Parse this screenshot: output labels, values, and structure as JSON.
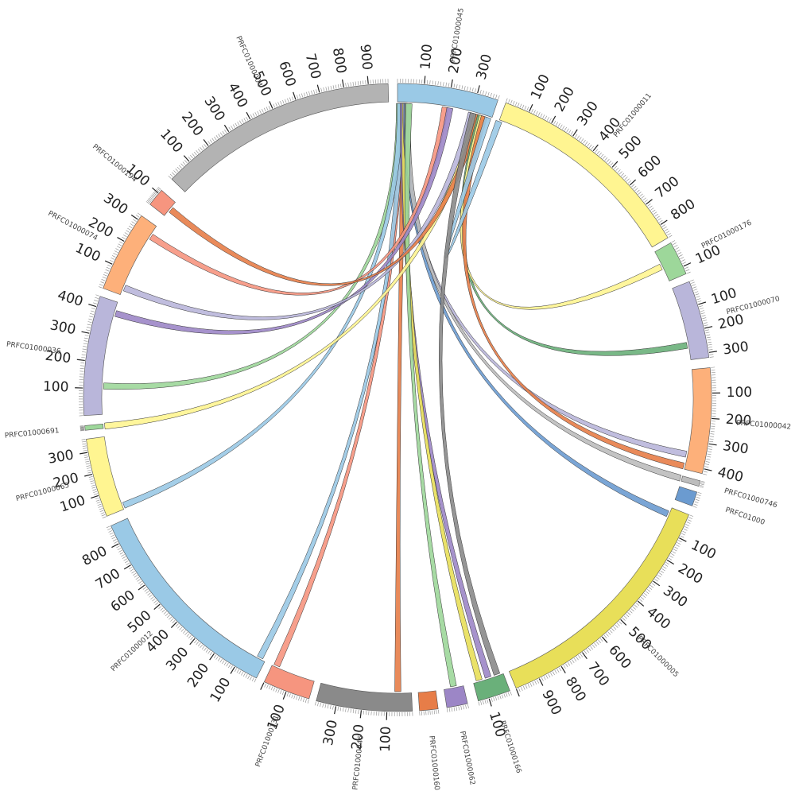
{
  "chart_data": {
    "type": "circos",
    "segments": [
      {
        "id": "PRFC01000045",
        "length": 380,
        "color": "#9ac9e6",
        "ticks": [
          "100",
          "200",
          "300"
        ]
      },
      {
        "id": "PRFC01000011",
        "length": 860,
        "color": "#fff591",
        "ticks": [
          "100",
          "200",
          "300",
          "400",
          "500",
          "600",
          "700",
          "800"
        ]
      },
      {
        "id": "PRFC01000176",
        "length": 130,
        "color": "#9dd79a",
        "ticks": [
          "100"
        ]
      },
      {
        "id": "PRFC01000070",
        "length": 320,
        "color": "#b9b6da",
        "ticks": [
          "100",
          "200",
          "300"
        ]
      },
      {
        "id": "PRFC01000042",
        "length": 420,
        "color": "#fdb07a",
        "ticks": [
          "100",
          "200",
          "300",
          "400"
        ]
      },
      {
        "id": "PRFC01000746",
        "length": 40,
        "color": "#bdbdbd",
        "ticks": []
      },
      {
        "id": "PRFC01000",
        "length": 60,
        "color": "#6b9bd0",
        "ticks": []
      },
      {
        "id": "PRFC01000005",
        "length": 1000,
        "color": "#e8df59",
        "ticks": [
          "100",
          "200",
          "300",
          "400",
          "500",
          "600",
          "700",
          "800",
          "900"
        ]
      },
      {
        "id": "PRFC01000166",
        "length": 150,
        "color": "#6ab07a",
        "ticks": [
          "100"
        ]
      },
      {
        "id": "PRFC01000062",
        "length": 90,
        "color": "#9c86c6",
        "ticks": []
      },
      {
        "id": "PRFC01000160",
        "length": 90,
        "color": "#e77d48",
        "ticks": []
      },
      {
        "id": "PRFC01000046",
        "length": 380,
        "color": "#8a8a8a",
        "ticks": [
          "100",
          "200",
          "300"
        ]
      },
      {
        "id": "PRFC01000131",
        "length": 200,
        "color": "#f6957f",
        "ticks": [
          "100"
        ]
      },
      {
        "id": "PRFC01000012",
        "length": 880,
        "color": "#9ac9e6",
        "ticks": [
          "100",
          "200",
          "300",
          "400",
          "500",
          "600",
          "700",
          "800"
        ]
      },
      {
        "id": "PRFC01000065",
        "length": 360,
        "color": "#fff591",
        "ticks": [
          "100",
          "200",
          "300"
        ]
      },
      {
        "id": "PRFC01000691",
        "length": 80,
        "color": "#9dd79a",
        "ticks": []
      },
      {
        "id": "PRFC01000036",
        "length": 440,
        "color": "#b9b6da",
        "ticks": [
          "100",
          "200",
          "300",
          "400"
        ]
      },
      {
        "id": "PRFC01000074",
        "length": 320,
        "color": "#fdb07a",
        "ticks": [
          "100",
          "200",
          "300"
        ]
      },
      {
        "id": "PRFC01000194",
        "length": 130,
        "color": "#f6957f",
        "ticks": [
          "100"
        ]
      },
      {
        "id": "PRFC01000004",
        "length": 980,
        "color": "#b3b3b3",
        "ticks": [
          "100",
          "200",
          "300",
          "400",
          "500",
          "600",
          "700",
          "800",
          "900"
        ]
      }
    ],
    "links": [
      {
        "source": "PRFC01000045",
        "source_pos": 0.05,
        "target": "PRFC01000131",
        "target_pos": 0.9,
        "color": "#f6957f"
      },
      {
        "source": "PRFC01000045",
        "source_pos": 0.07,
        "target": "PRFC01000046",
        "target_pos": 0.15,
        "color": "#e77d48"
      },
      {
        "source": "PRFC01000045",
        "source_pos": 0.04,
        "target": "PRFC01000012",
        "target_pos": 0.03,
        "color": "#9ac9e6"
      },
      {
        "source": "PRFC01000045",
        "source_pos": 0.02,
        "target": "PRFC01000036",
        "target_pos": 0.25,
        "color": "#9dd79a"
      },
      {
        "source": "PRFC01000045",
        "source_pos": 0.03,
        "target": "PRFC01000065",
        "target_pos": 0.05,
        "color": "#9ac9e6"
      },
      {
        "source": "PRFC01000045",
        "source_pos": 0.06,
        "target": "PRFC01000166",
        "target_pos": 0.5,
        "color": "#9c86c6"
      },
      {
        "source": "PRFC01000045",
        "source_pos": 0.08,
        "target": "PRFC01000166",
        "target_pos": 0.8,
        "color": "#e8df59"
      },
      {
        "source": "PRFC01000045",
        "source_pos": 0.09,
        "target": "PRFC01000042",
        "target_pos": 0.85,
        "color": "#b9b6da"
      },
      {
        "source": "PRFC01000045",
        "source_pos": 0.1,
        "target": "PRFC01000005",
        "target_pos": 0.03,
        "color": "#6b9bd0"
      },
      {
        "source": "PRFC01000045",
        "source_pos": 0.11,
        "target": "PRFC01000746",
        "target_pos": 0.5,
        "color": "#bdbdbd"
      },
      {
        "source": "PRFC01000045",
        "source_pos": 0.12,
        "target": "PRFC01000062",
        "target_pos": 0.5,
        "color": "#9dd79a"
      },
      {
        "source": "PRFC01000045",
        "source_pos": 0.5,
        "target": "PRFC01000074",
        "target_pos": 0.85,
        "color": "#f6957f"
      },
      {
        "source": "PRFC01000045",
        "source_pos": 0.55,
        "target": "PRFC01000036",
        "target_pos": 0.9,
        "color": "#9c86c6"
      },
      {
        "source": "PRFC01000045",
        "source_pos": 0.78,
        "target": "PRFC01000074",
        "target_pos": 0.1,
        "color": "#b9b6da"
      },
      {
        "source": "PRFC01000045",
        "source_pos": 0.84,
        "target": "PRFC01000691",
        "target_pos": 0.5,
        "color": "#fff591"
      },
      {
        "source": "PRFC01000045",
        "source_pos": 0.86,
        "target": "PRFC01000194",
        "target_pos": 0.5,
        "color": "#e77d48"
      },
      {
        "source": "PRFC01000045",
        "source_pos": 0.88,
        "target": "PRFC01000070",
        "target_pos": 0.8,
        "color": "#6ab07a"
      },
      {
        "source": "PRFC01000045",
        "source_pos": 0.9,
        "target": "PRFC01000176",
        "target_pos": 0.5,
        "color": "#fff591"
      },
      {
        "source": "PRFC01000045",
        "source_pos": 0.92,
        "target": "PRFC01000042",
        "target_pos": 0.97,
        "color": "#e77d48"
      },
      {
        "source": "PRFC01000045",
        "source_pos": 0.96,
        "target": "PRFC01000011",
        "target_pos": 0.0,
        "color": "#9ac9e6"
      },
      {
        "source": "PRFC01000045",
        "source_pos": 0.8,
        "target": "PRFC01000166",
        "target_pos": 0.2,
        "color": "#8a8a8a"
      }
    ]
  }
}
